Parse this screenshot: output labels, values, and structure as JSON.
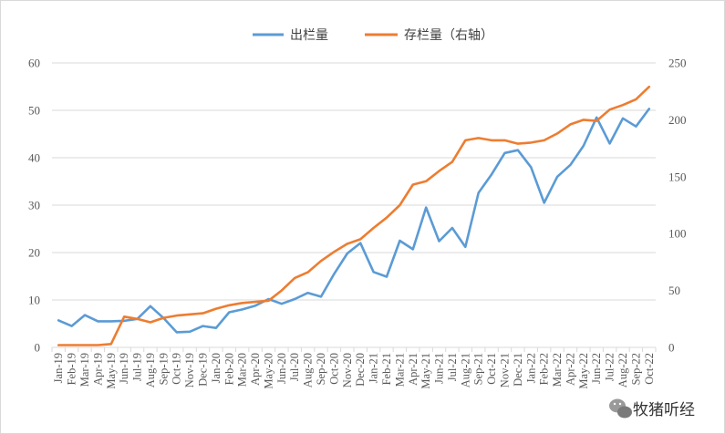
{
  "chart_data": {
    "type": "line",
    "categories": [
      "Jan-19",
      "Feb-19",
      "Mar-19",
      "Apr-19",
      "May-19",
      "Jun-19",
      "Jul-19",
      "Aug-19",
      "Sep-19",
      "Oct-19",
      "Nov-19",
      "Dec-19",
      "Jan-20",
      "Feb-20",
      "Mar-20",
      "Apr-20",
      "May-20",
      "Jun-20",
      "Jul-20",
      "Aug-20",
      "Sep-20",
      "Oct-20",
      "Nov-20",
      "Dec-20",
      "Jan-21",
      "Feb-21",
      "Mar-21",
      "Apr-21",
      "May-21",
      "Jun-21",
      "Jul-21",
      "Aug-21",
      "Sep-21",
      "Oct-21",
      "Nov-21",
      "Dec-21",
      "Jan-22",
      "Feb-22",
      "Mar-22",
      "Apr-22",
      "May-22",
      "Jun-22",
      "Jul-22",
      "Aug-22",
      "Sep-22",
      "Oct-22"
    ],
    "series": [
      {
        "name": "出栏量",
        "axis": "left",
        "color": "#5B9BD5",
        "values": [
          5.7,
          4.5,
          6.8,
          5.5,
          5.5,
          5.6,
          6.0,
          8.7,
          6.2,
          3.2,
          3.3,
          4.5,
          4.1,
          7.4,
          8.0,
          8.8,
          10.2,
          9.2,
          10.2,
          11.5,
          10.7,
          15.5,
          19.8,
          22.0,
          15.9,
          14.9,
          22.5,
          20.7,
          29.5,
          22.4,
          25.2,
          21.2,
          32.6,
          36.5,
          41.0,
          41.6,
          38.0,
          30.5,
          36.0,
          38.5,
          42.5,
          48.5,
          43.0,
          48.3,
          46.6,
          50.3
        ]
      },
      {
        "name": "存栏量（右轴）",
        "axis": "right",
        "color": "#ED7D31",
        "values": [
          2,
          2,
          2,
          2,
          3,
          27,
          25,
          22,
          26,
          28,
          29,
          30,
          34,
          37,
          39,
          40,
          41,
          50,
          61,
          66,
          76,
          84,
          91,
          95,
          105,
          114,
          125,
          143,
          146,
          155,
          163,
          182,
          184,
          182,
          182,
          179,
          180,
          182,
          188,
          196,
          200,
          199,
          209,
          213,
          218,
          229
        ]
      }
    ],
    "ylim_left": [
      0,
      60
    ],
    "yticks_left": [
      0,
      10,
      20,
      30,
      40,
      50,
      60
    ],
    "ylim_right": [
      0,
      250
    ],
    "yticks_right": [
      0,
      50,
      100,
      150,
      200,
      250
    ],
    "grid": true,
    "legend_position": "top-center"
  },
  "watermark": {
    "text": "牧猪听经",
    "icon": "wechat-icon"
  }
}
